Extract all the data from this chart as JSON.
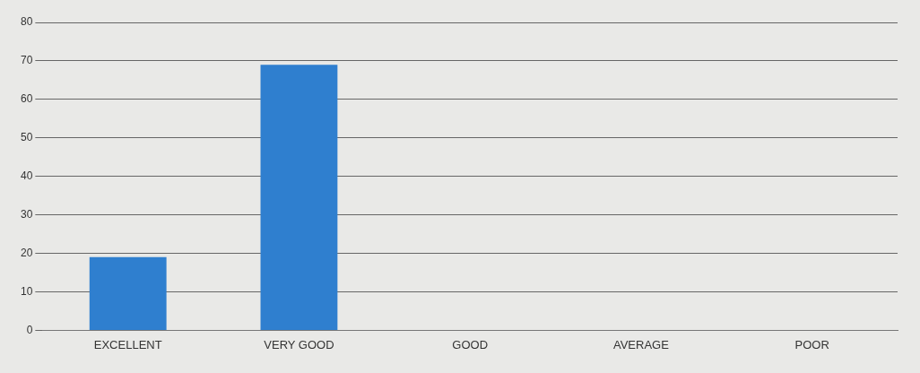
{
  "chart_data": {
    "type": "bar",
    "categories": [
      "EXCELLENT",
      "VERY GOOD",
      "GOOD",
      "AVERAGE",
      "POOR"
    ],
    "series": [
      {
        "color": "#2f7fcf",
        "values": [
          19,
          69,
          0,
          0,
          0
        ]
      }
    ],
    "ylim": [
      0,
      80
    ],
    "yticks": [
      0,
      10,
      20,
      30,
      40,
      50,
      60,
      70,
      80
    ],
    "grid": "y",
    "legend": false
  }
}
